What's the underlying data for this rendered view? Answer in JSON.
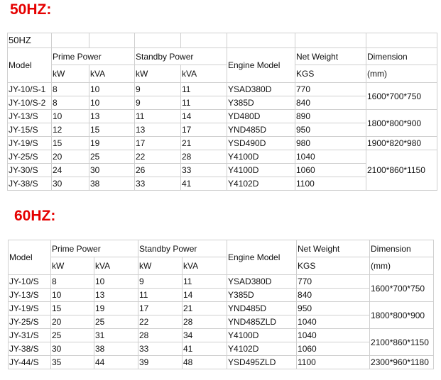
{
  "sections": [
    {
      "title": "50HZ:",
      "table_caption": "50HZ",
      "headers": {
        "model": "Model",
        "prime_power": "Prime Power",
        "standby_power": "Standby Power",
        "engine_model": "Engine Model",
        "net_weight": "Net Weight",
        "net_weight_unit": "KGS",
        "dimension": "Dimension",
        "dimension_unit": " (mm)",
        "kw": "kW",
        "kva": "kVA"
      },
      "rows": [
        {
          "model": "JY-10/S-1",
          "prime_kw": "8",
          "prime_kva": "10",
          "standby_kw": "9",
          "standby_kva": "11",
          "engine": "YSAD380D",
          "weight": "770"
        },
        {
          "model": "JY-10/S-2",
          "prime_kw": "8",
          "prime_kva": "10",
          "standby_kw": "9",
          "standby_kva": "11",
          "engine": "Y385D",
          "weight": "840"
        },
        {
          "model": "JY-13/S",
          "prime_kw": "10",
          "prime_kva": "13",
          "standby_kw": "11",
          "standby_kva": "14",
          "engine": "YD480D",
          "weight": "890"
        },
        {
          "model": "JY-15/S",
          "prime_kw": "12",
          "prime_kva": "15",
          "standby_kw": "13",
          "standby_kva": "17",
          "engine": "YND485D",
          "weight": "950"
        },
        {
          "model": "JY-19/S",
          "prime_kw": "15",
          "prime_kva": "19",
          "standby_kw": "17",
          "standby_kva": "21",
          "engine": "YSD490D",
          "weight": "980"
        },
        {
          "model": "JY-25/S",
          "prime_kw": "20",
          "prime_kva": "25",
          "standby_kw": "22",
          "standby_kva": "28",
          "engine": "Y4100D",
          "weight": "1040"
        },
        {
          "model": "JY-30/S",
          "prime_kw": "24",
          "prime_kva": "30",
          "standby_kw": "26",
          "standby_kva": "33",
          "engine": "Y4100D",
          "weight": "1060"
        },
        {
          "model": "JY-38/S",
          "prime_kw": "30",
          "prime_kva": "38",
          "standby_kw": "33",
          "standby_kva": "41",
          "engine": "Y4102D",
          "weight": "1100"
        }
      ],
      "dimensions": [
        "1600*700*750",
        "1800*800*900",
        "1900*820*980",
        "2100*860*1150"
      ]
    },
    {
      "title": "60HZ:",
      "headers": {
        "model": "Model",
        "prime_power": "Prime Power",
        "standby_power": "Standby Power",
        "engine_model": "Engine Model",
        "net_weight": "Net Weight",
        "net_weight_unit": "KGS",
        "dimension": "Dimension",
        "dimension_unit": " (mm)",
        "kw": "kW",
        "kva": "kVA"
      },
      "rows": [
        {
          "model": "JY-10/S",
          "prime_kw": "8",
          "prime_kva": "10",
          "standby_kw": "9",
          "standby_kva": "11",
          "engine": "YSAD380D",
          "weight": "770"
        },
        {
          "model": "JY-13/S",
          "prime_kw": "10",
          "prime_kva": "13",
          "standby_kw": "11",
          "standby_kva": "14",
          "engine": "Y385D",
          "weight": "840"
        },
        {
          "model": "JY-19/S",
          "prime_kw": "15",
          "prime_kva": "19",
          "standby_kw": "17",
          "standby_kva": "21",
          "engine": "YND485D",
          "weight": "950"
        },
        {
          "model": "JY-25/S",
          "prime_kw": "20",
          "prime_kva": "25",
          "standby_kw": "22",
          "standby_kva": "28",
          "engine": "YND485ZLD",
          "weight": "1040"
        },
        {
          "model": "JY-31/S",
          "prime_kw": "25",
          "prime_kva": "31",
          "standby_kw": "28",
          "standby_kva": "34",
          "engine": "Y4100D",
          "weight": "1040"
        },
        {
          "model": "JY-38/S",
          "prime_kw": "30",
          "prime_kva": "38",
          "standby_kw": "33",
          "standby_kva": "41",
          "engine": "Y4102D",
          "weight": "1060"
        },
        {
          "model": "JY-44/S",
          "prime_kw": "35",
          "prime_kva": "44",
          "standby_kw": "39",
          "standby_kva": "48",
          "engine": "YSD495ZLD",
          "weight": "1100"
        }
      ],
      "dimensions": [
        "1600*700*750",
        "1800*800*900",
        "2100*860*1150",
        "2300*960*1180"
      ]
    }
  ]
}
